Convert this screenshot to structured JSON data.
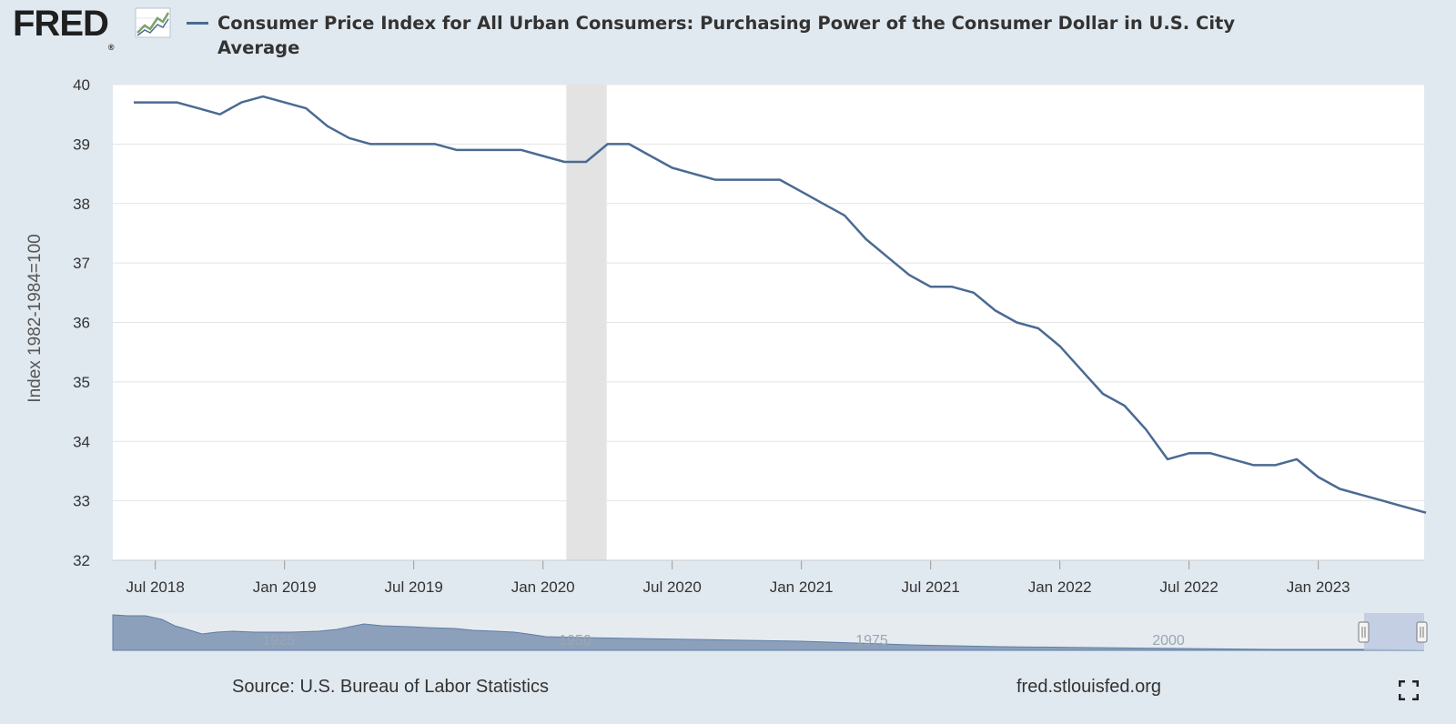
{
  "logo": {
    "text": "FRED",
    "mark": "®"
  },
  "title": "Consumer Price Index for All Urban Consumers: Purchasing Power of the Consumer Dollar in U.S. City Average",
  "footer": {
    "source": "Source: U.S. Bureau of Labor Statistics",
    "url": "fred.stlouisfed.org"
  },
  "colors": {
    "series": "#4a6a93",
    "recession": "#e3e3e3",
    "background": "#e1e9f0"
  },
  "icons": {
    "logo_graph": "line-chart-icon",
    "fullscreen": "fullscreen-icon"
  },
  "chart_data": {
    "type": "line",
    "title": "Consumer Price Index for All Urban Consumers: Purchasing Power of the Consumer Dollar in U.S. City Average",
    "xlabel": "",
    "ylabel": "Index 1982-1984=100",
    "ylim": [
      32,
      40
    ],
    "yticks": [
      "40",
      "39",
      "38",
      "37",
      "36",
      "35",
      "34",
      "33",
      "32"
    ],
    "xticks": [
      "Jul 2018",
      "Jan 2019",
      "Jul 2019",
      "Jan 2020",
      "Jul 2020",
      "Jan 2021",
      "Jul 2021",
      "Jan 2022",
      "Jul 2022",
      "Jan 2023"
    ],
    "grid": true,
    "recession": {
      "start": "2020-02",
      "end": "2020-04"
    },
    "series": [
      {
        "name": "",
        "x": [
          "2018-06",
          "2018-07",
          "2018-08",
          "2018-09",
          "2018-10",
          "2018-11",
          "2018-12",
          "2019-01",
          "2019-02",
          "2019-03",
          "2019-04",
          "2019-05",
          "2019-06",
          "2019-07",
          "2019-08",
          "2019-09",
          "2019-10",
          "2019-11",
          "2019-12",
          "2020-01",
          "2020-02",
          "2020-03",
          "2020-04",
          "2020-05",
          "2020-06",
          "2020-07",
          "2020-08",
          "2020-09",
          "2020-10",
          "2020-11",
          "2020-12",
          "2021-01",
          "2021-02",
          "2021-03",
          "2021-04",
          "2021-05",
          "2021-06",
          "2021-07",
          "2021-08",
          "2021-09",
          "2021-10",
          "2021-11",
          "2021-12",
          "2022-01",
          "2022-02",
          "2022-03",
          "2022-04",
          "2022-05",
          "2022-06",
          "2022-07",
          "2022-08",
          "2022-09",
          "2022-10",
          "2022-11",
          "2022-12",
          "2023-01",
          "2023-02",
          "2023-03",
          "2023-04",
          "2023-05",
          "2023-06"
        ],
        "values": [
          39.7,
          39.7,
          39.7,
          39.6,
          39.5,
          39.7,
          39.8,
          39.7,
          39.6,
          39.3,
          39.1,
          39.0,
          39.0,
          39.0,
          39.0,
          38.9,
          38.9,
          38.9,
          38.9,
          38.8,
          38.7,
          38.7,
          39.0,
          39.0,
          38.8,
          38.6,
          38.5,
          38.4,
          38.4,
          38.4,
          38.4,
          38.2,
          38.0,
          37.8,
          37.4,
          37.1,
          36.8,
          36.6,
          36.6,
          36.5,
          36.2,
          36.0,
          35.9,
          35.6,
          35.2,
          34.8,
          34.6,
          34.2,
          33.7,
          33.8,
          33.8,
          33.7,
          33.6,
          33.6,
          33.7,
          33.4,
          33.2,
          33.1,
          33.0,
          32.9,
          32.8
        ]
      }
    ]
  },
  "navigator": {
    "labels": [
      "1925",
      "1950",
      "1975",
      "2000"
    ]
  }
}
